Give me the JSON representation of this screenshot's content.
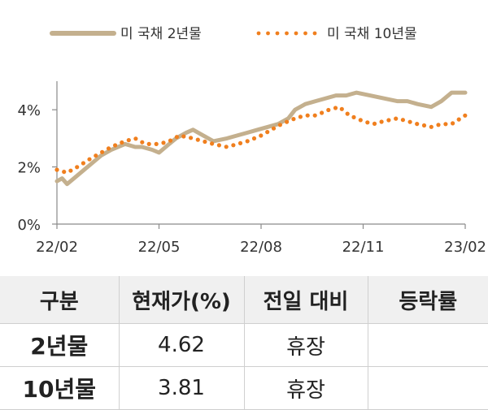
{
  "legend": {
    "series_2y": "미 국채 2년물",
    "series_10y": "미 국채 10년물"
  },
  "colors": {
    "series_2y": "#c4b08e",
    "series_10y": "#f07f1e",
    "axis": "#8a8a8a"
  },
  "chart_data": {
    "type": "line",
    "x_ticks": [
      "22/02",
      "22/05",
      "22/08",
      "22/11",
      "23/02"
    ],
    "y_ticks": [
      "0%",
      "2%",
      "4%"
    ],
    "ylim": [
      0,
      5
    ],
    "x_range": [
      "22/02",
      "23/02"
    ],
    "grid": false,
    "legend_position": "top",
    "series": [
      {
        "name": "미 국채 2년물",
        "style": "solid",
        "x": [
          0,
          0.15,
          0.3,
          0.5,
          0.8,
          1.0,
          1.3,
          1.6,
          2.0,
          2.3,
          2.5,
          2.8,
          3.0,
          3.3,
          3.5,
          3.8,
          4.0,
          4.3,
          4.6,
          5.0,
          5.3,
          5.6,
          5.9,
          6.2,
          6.5,
          6.8,
          7.0,
          7.3,
          7.6,
          7.9,
          8.2,
          8.5,
          8.8,
          9.2,
          9.6,
          10.0,
          10.3,
          10.6,
          11.0,
          11.3,
          11.6,
          12.0
        ],
        "values": [
          1.5,
          1.6,
          1.4,
          1.6,
          1.9,
          2.1,
          2.4,
          2.6,
          2.8,
          2.7,
          2.7,
          2.6,
          2.5,
          2.8,
          3.0,
          3.2,
          3.3,
          3.1,
          2.9,
          3.0,
          3.1,
          3.2,
          3.3,
          3.4,
          3.5,
          3.7,
          4.0,
          4.2,
          4.3,
          4.4,
          4.5,
          4.5,
          4.6,
          4.5,
          4.4,
          4.3,
          4.3,
          4.2,
          4.1,
          4.3,
          4.6,
          4.6
        ]
      },
      {
        "name": "미 국채 10년물",
        "style": "dotted",
        "x": [
          0,
          0.3,
          0.6,
          1.0,
          1.3,
          1.6,
          2.0,
          2.3,
          2.6,
          3.0,
          3.3,
          3.6,
          4.0,
          4.3,
          4.6,
          5.0,
          5.3,
          5.6,
          6.0,
          6.3,
          6.6,
          7.0,
          7.3,
          7.6,
          8.0,
          8.3,
          8.6,
          9.0,
          9.3,
          9.6,
          10.0,
          10.3,
          10.6,
          11.0,
          11.3,
          11.6,
          12.0
        ],
        "values": [
          1.9,
          1.8,
          2.0,
          2.3,
          2.5,
          2.7,
          2.9,
          3.0,
          2.8,
          2.8,
          2.9,
          3.1,
          3.0,
          2.9,
          2.8,
          2.7,
          2.8,
          2.9,
          3.1,
          3.3,
          3.5,
          3.7,
          3.8,
          3.8,
          4.0,
          4.1,
          3.8,
          3.6,
          3.5,
          3.6,
          3.7,
          3.6,
          3.5,
          3.4,
          3.5,
          3.5,
          3.8
        ]
      }
    ]
  },
  "table": {
    "headers": [
      "구분",
      "현재가(%)",
      "전일 대비",
      "등락률"
    ],
    "rows": [
      {
        "label": "2년물",
        "price": "4.62",
        "change": "휴장",
        "rate": ""
      },
      {
        "label": "10년물",
        "price": "3.81",
        "change": "휴장",
        "rate": ""
      }
    ]
  }
}
